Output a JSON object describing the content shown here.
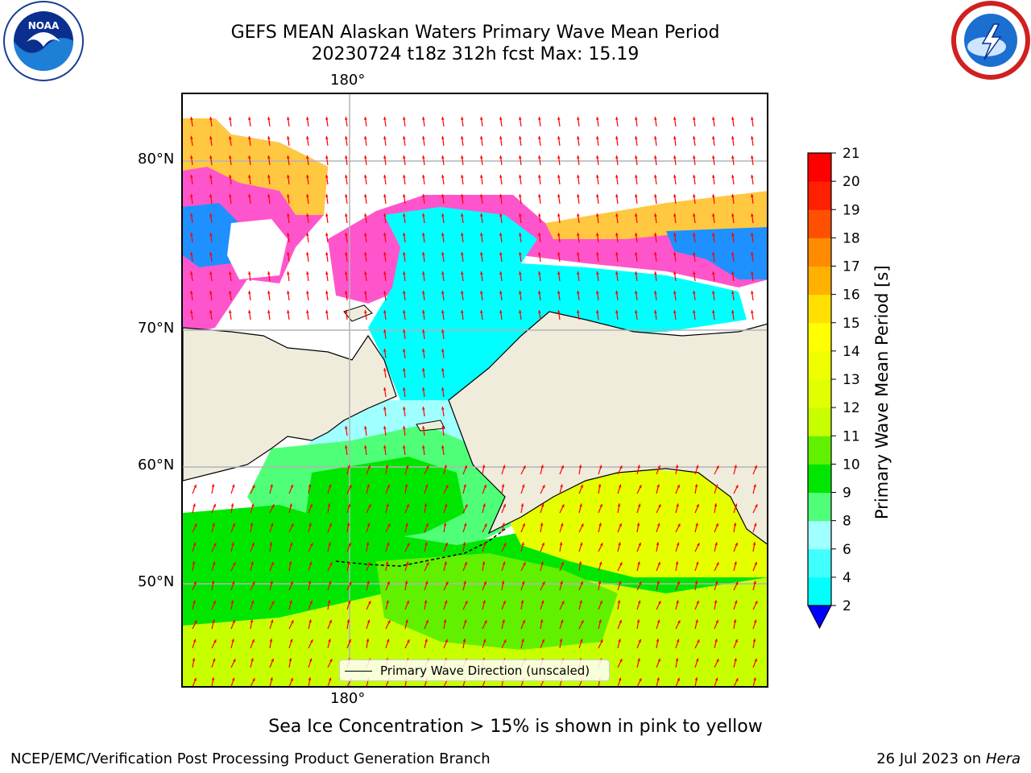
{
  "header": {
    "title_line1": "GEFS MEAN Alaskan Waters Primary Wave Mean Period",
    "title_line2": "20230724 t18z 312h fcst   Max: 15.19"
  },
  "map": {
    "lon_label_top": "180°",
    "lon_label_bottom": "180°",
    "lat_labels": [
      "80°N",
      "70°N",
      "60°N",
      "50°N"
    ],
    "legend_text": "Primary Wave Direction (unscaled)",
    "colors": {
      "land": "#efecdc",
      "ocean_cyan": "#00ffff",
      "ocean_light_cyan": "#a0ffff",
      "ocean_green": "#00e600",
      "ocean_mint": "#50ff78",
      "ocean_yellowgreen": "#c8ff00",
      "ocean_yellow": "#e6ff00",
      "ice_pink": "#ff55cc",
      "ice_orange": "#ffc840",
      "ice_blue": "#1e90ff",
      "arrow": "#ff0000",
      "grid": "#b4b4b4"
    }
  },
  "colorbar": {
    "label": "Primary Wave Mean Period [s]",
    "ticks": [
      "2",
      "4",
      "6",
      "8",
      "9",
      "10",
      "11",
      "12",
      "13",
      "14",
      "15",
      "16",
      "17",
      "18",
      "19",
      "20",
      "21"
    ],
    "colors": [
      "#0070ff",
      "#00ffff",
      "#40ffff",
      "#a0ffff",
      "#50ff78",
      "#00e600",
      "#60f000",
      "#c8ff00",
      "#e0ff00",
      "#f0ff00",
      "#ffff00",
      "#ffe000",
      "#ffb000",
      "#ff8c00",
      "#ff5000",
      "#ff2000",
      "#ff0000"
    ],
    "extend_color": "#0000ff"
  },
  "caption": "Sea Ice Concentration > 15% is shown in pink to yellow",
  "footer": {
    "left": "NCEP/EMC/Verification Post Processing Product Generation Branch",
    "right_date": "26 Jul 2023 on ",
    "right_host": "Hera"
  },
  "logos": {
    "left": "noaa-logo",
    "right": "nws-logo"
  }
}
